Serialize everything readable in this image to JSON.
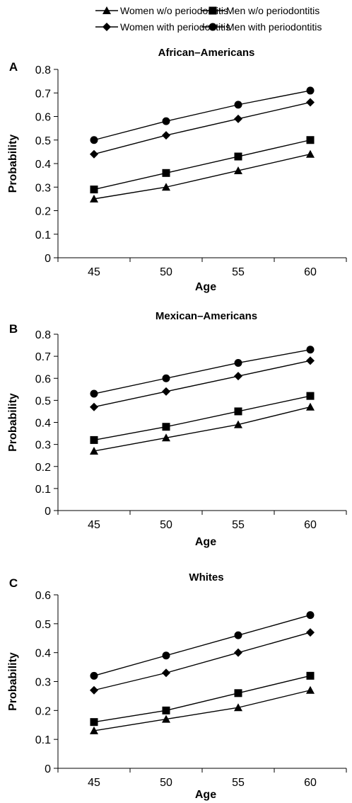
{
  "legend": {
    "entries": [
      {
        "label": "Women w/o periodontitis",
        "marker": "triangle"
      },
      {
        "label": "Men w/o periodontitis",
        "marker": "square"
      },
      {
        "label": "Women with periodontitis",
        "marker": "diamond"
      },
      {
        "label": "Men with periodontitis",
        "marker": "circle"
      }
    ]
  },
  "chart_data": [
    {
      "type": "line",
      "panel_label": "A",
      "title": "African–Americans",
      "xlabel": "Age",
      "ylabel": "Probability",
      "x": [
        45,
        50,
        55,
        60
      ],
      "xticks": [
        "45",
        "50",
        "55",
        "60"
      ],
      "yticks": [
        "0",
        "0.1",
        "0.2",
        "0.3",
        "0.4",
        "0.5",
        "0.6",
        "0.7",
        "0.8"
      ],
      "ylim": [
        0,
        0.8
      ],
      "series": [
        {
          "name": "Women w/o periodontitis",
          "marker": "triangle",
          "values": [
            0.25,
            0.3,
            0.37,
            0.44
          ]
        },
        {
          "name": "Men w/o periodontitis",
          "marker": "square",
          "values": [
            0.29,
            0.36,
            0.43,
            0.5
          ]
        },
        {
          "name": "Women with periodontitis",
          "marker": "diamond",
          "values": [
            0.44,
            0.52,
            0.59,
            0.66
          ]
        },
        {
          "name": "Men with periodontitis",
          "marker": "circle",
          "values": [
            0.5,
            0.58,
            0.65,
            0.71
          ]
        }
      ]
    },
    {
      "type": "line",
      "panel_label": "B",
      "title": "Mexican–Americans",
      "xlabel": "Age",
      "ylabel": "Probability",
      "x": [
        45,
        50,
        55,
        60
      ],
      "xticks": [
        "45",
        "50",
        "55",
        "60"
      ],
      "yticks": [
        "0",
        "0.1",
        "0.2",
        "0.3",
        "0.4",
        "0.5",
        "0.6",
        "0.7",
        "0.8"
      ],
      "ylim": [
        0,
        0.8
      ],
      "series": [
        {
          "name": "Women w/o periodontitis",
          "marker": "triangle",
          "values": [
            0.27,
            0.33,
            0.39,
            0.47
          ]
        },
        {
          "name": "Men w/o periodontitis",
          "marker": "square",
          "values": [
            0.32,
            0.38,
            0.45,
            0.52
          ]
        },
        {
          "name": "Women with periodontitis",
          "marker": "diamond",
          "values": [
            0.47,
            0.54,
            0.61,
            0.68
          ]
        },
        {
          "name": "Men with periodontitis",
          "marker": "circle",
          "values": [
            0.53,
            0.6,
            0.67,
            0.73
          ]
        }
      ]
    },
    {
      "type": "line",
      "panel_label": "C",
      "title": "Whites",
      "xlabel": "Age",
      "ylabel": "Probability",
      "x": [
        45,
        50,
        55,
        60
      ],
      "xticks": [
        "45",
        "50",
        "55",
        "60"
      ],
      "yticks": [
        "0",
        "0.1",
        "0.2",
        "0.3",
        "0.4",
        "0.5",
        "0.6"
      ],
      "ylim": [
        0,
        0.6
      ],
      "series": [
        {
          "name": "Women w/o periodontitis",
          "marker": "triangle",
          "values": [
            0.13,
            0.17,
            0.21,
            0.27
          ]
        },
        {
          "name": "Men w/o periodontitis",
          "marker": "square",
          "values": [
            0.16,
            0.2,
            0.26,
            0.32
          ]
        },
        {
          "name": "Women with periodontitis",
          "marker": "diamond",
          "values": [
            0.27,
            0.33,
            0.4,
            0.47
          ]
        },
        {
          "name": "Men with periodontitis",
          "marker": "circle",
          "values": [
            0.32,
            0.39,
            0.46,
            0.53
          ]
        }
      ]
    }
  ]
}
